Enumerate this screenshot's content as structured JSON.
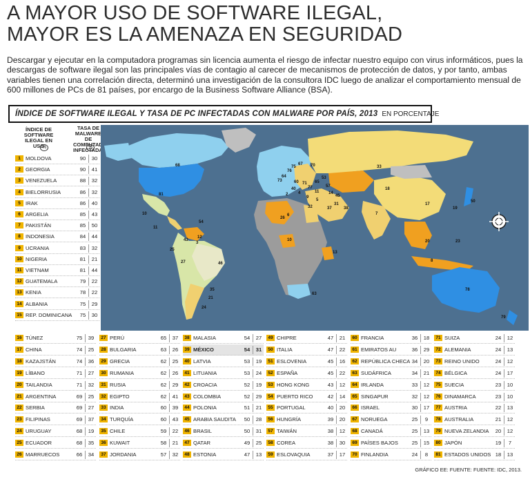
{
  "title": {
    "line1": "A MAYOR USO DE SOFTWARE ILEGAL,",
    "line2": "MAYOR ES LA AMENAZA EN SEGURIDAD"
  },
  "intro": "Descargar y ejecutar en la computadora programas sin licencia aumenta el riesgo de infectar nuestro equipo con virus informáticos, pues la descargas de software ilegal son las principales vías de contagio al carecer de mecanismos de protección de datos,  y por tanto, ambas variables tienen una correlación directa, determinó una investigación de la consultora IDC luego de analizar el comportamiento mensual de 600 millones de PCs de 81 países, por encargo de la Business Software Alliance (BSA).",
  "subhead": {
    "bold": "ÍNDICE DE SOFTWARE ILEGAL Y TASA DE PC INFECTADAS CON MALWARE POR PAÍS, 2013",
    "unit": "EN PORCENTAJE"
  },
  "column_headers": {
    "col1": "ÍNDICE DE SOFTWARE ILEGAL EN USO",
    "col2": "TASA DE MALWARE DE COMPUTADORAS INFECTADAS",
    "pct": "%"
  },
  "footer": "GRÁFICO EE: FUENTE: FUENTE: IDC, 2013.",
  "colors": {
    "ocean": "#4d7090",
    "rank_badge": "#f0b400",
    "highlight_row": "#e4e4e4"
  },
  "chart_data": {
    "type": "table",
    "columns": [
      "Rank",
      "País",
      "Índice de software ilegal en uso (%)",
      "Tasa de malware de computadoras infectadas (%)"
    ],
    "rows": [
      {
        "rank": "1",
        "country": "MOLDOVA",
        "illegal": "90",
        "malware": "30"
      },
      {
        "rank": "2",
        "country": "GEORGIA",
        "illegal": "90",
        "malware": "41"
      },
      {
        "rank": "3",
        "country": "VENEZUELA",
        "illegal": "88",
        "malware": "32"
      },
      {
        "rank": "4",
        "country": "BIELORRUSIA",
        "illegal": "86",
        "malware": "32"
      },
      {
        "rank": "5",
        "country": "IRAK",
        "illegal": "86",
        "malware": "40"
      },
      {
        "rank": "6",
        "country": "ARGELIA",
        "illegal": "85",
        "malware": "43"
      },
      {
        "rank": "7",
        "country": "PAKISTÁN",
        "illegal": "85",
        "malware": "50"
      },
      {
        "rank": "8",
        "country": "INDONESIA",
        "illegal": "84",
        "malware": "44"
      },
      {
        "rank": "9",
        "country": "UCRANIA",
        "illegal": "83",
        "malware": "32"
      },
      {
        "rank": "10",
        "country": "NIGERIA",
        "illegal": "81",
        "malware": "21"
      },
      {
        "rank": "11",
        "country": "VIETNAM",
        "illegal": "81",
        "malware": "44"
      },
      {
        "rank": "12",
        "country": "GUATEMALA",
        "illegal": "79",
        "malware": "22"
      },
      {
        "rank": "13",
        "country": "KENIA",
        "illegal": "78",
        "malware": "22"
      },
      {
        "rank": "14",
        "country": "ALBANIA",
        "illegal": "75",
        "malware": "29"
      },
      {
        "rank": "15",
        "country": "REP. DOMINICANA",
        "illegal": "75",
        "malware": "30"
      },
      {
        "rank": "16",
        "country": "TÚNEZ",
        "illegal": "75",
        "malware": "39"
      },
      {
        "rank": "17",
        "country": "CHINA",
        "illegal": "74",
        "malware": "25"
      },
      {
        "rank": "18",
        "country": "KAZAJSTÁN",
        "illegal": "74",
        "malware": "36"
      },
      {
        "rank": "19",
        "country": "LÍBANO",
        "illegal": "71",
        "malware": "27"
      },
      {
        "rank": "20",
        "country": "TAILANDIA",
        "illegal": "71",
        "malware": "32"
      },
      {
        "rank": "21",
        "country": "ARGENTINA",
        "illegal": "69",
        "malware": "25"
      },
      {
        "rank": "22",
        "country": "SERBIA",
        "illegal": "69",
        "malware": "27"
      },
      {
        "rank": "23",
        "country": "FILIPINAS",
        "illegal": "69",
        "malware": "37"
      },
      {
        "rank": "24",
        "country": "URUGUAY",
        "illegal": "68",
        "malware": "19"
      },
      {
        "rank": "25",
        "country": "ECUADOR",
        "illegal": "68",
        "malware": "35"
      },
      {
        "rank": "26",
        "country": "MARRUECOS",
        "illegal": "66",
        "malware": "34"
      },
      {
        "rank": "27",
        "country": "PERÚ",
        "illegal": "65",
        "malware": "37"
      },
      {
        "rank": "28",
        "country": "BULGARIA",
        "illegal": "63",
        "malware": "26"
      },
      {
        "rank": "29",
        "country": "GRECIA",
        "illegal": "62",
        "malware": "25"
      },
      {
        "rank": "30",
        "country": "RUMANIA",
        "illegal": "62",
        "malware": "26"
      },
      {
        "rank": "31",
        "country": "RUSIA",
        "illegal": "62",
        "malware": "29"
      },
      {
        "rank": "32",
        "country": "EGIPTO",
        "illegal": "62",
        "malware": "41"
      },
      {
        "rank": "33",
        "country": "INDIA",
        "illegal": "60",
        "malware": "39"
      },
      {
        "rank": "34",
        "country": "TURQUÍA",
        "illegal": "60",
        "malware": "43"
      },
      {
        "rank": "35",
        "country": "CHILE",
        "illegal": "59",
        "malware": "22"
      },
      {
        "rank": "36",
        "country": "KUWAIT",
        "illegal": "58",
        "malware": "21"
      },
      {
        "rank": "37",
        "country": "JORDANIA",
        "illegal": "57",
        "malware": "32"
      },
      {
        "rank": "38",
        "country": "MALASIA",
        "illegal": "54",
        "malware": "27"
      },
      {
        "rank": "39",
        "country": "MÉXICO",
        "illegal": "54",
        "malware": "31",
        "highlight": true
      },
      {
        "rank": "40",
        "country": "LATVIA",
        "illegal": "53",
        "malware": "19"
      },
      {
        "rank": "41",
        "country": "LITUANIA",
        "illegal": "53",
        "malware": "24"
      },
      {
        "rank": "42",
        "country": "CROACIA",
        "illegal": "52",
        "malware": "19"
      },
      {
        "rank": "43",
        "country": "COLOMBIA",
        "illegal": "52",
        "malware": "29"
      },
      {
        "rank": "44",
        "country": "POLONIA",
        "illegal": "51",
        "malware": "21"
      },
      {
        "rank": "45",
        "country": "ARABIA SAUDITA",
        "illegal": "50",
        "malware": "28"
      },
      {
        "rank": "46",
        "country": "BRASIL",
        "illegal": "50",
        "malware": "31"
      },
      {
        "rank": "47",
        "country": "QATAR",
        "illegal": "49",
        "malware": "25"
      },
      {
        "rank": "48",
        "country": "ESTONIA",
        "illegal": "47",
        "malware": "13"
      },
      {
        "rank": "49",
        "country": "CHIPRE",
        "illegal": "47",
        "malware": "21"
      },
      {
        "rank": "50",
        "country": "ITALIA",
        "illegal": "47",
        "malware": "22"
      },
      {
        "rank": "51",
        "country": "ESLOVENIA",
        "illegal": "45",
        "malware": "16"
      },
      {
        "rank": "52",
        "country": "ESPAÑA",
        "illegal": "45",
        "malware": "22"
      },
      {
        "rank": "53",
        "country": "HONG KONG",
        "illegal": "43",
        "malware": "12"
      },
      {
        "rank": "54",
        "country": "PUERTO RICO",
        "illegal": "42",
        "malware": "14"
      },
      {
        "rank": "55",
        "country": "PORTUGAL",
        "illegal": "40",
        "malware": "20"
      },
      {
        "rank": "56",
        "country": "HUNGRÍA",
        "illegal": "39",
        "malware": "20"
      },
      {
        "rank": "57",
        "country": "TAIWÁN",
        "illegal": "38",
        "malware": "12"
      },
      {
        "rank": "58",
        "country": "COREA",
        "illegal": "38",
        "malware": "30"
      },
      {
        "rank": "59",
        "country": "ESLOVAQUIA",
        "illegal": "37",
        "malware": "17"
      },
      {
        "rank": "60",
        "country": "FRANCIA",
        "illegal": "36",
        "malware": "18"
      },
      {
        "rank": "61",
        "country": "EMIRATOS AU",
        "illegal": "36",
        "malware": "29"
      },
      {
        "rank": "62",
        "country": "REPÚBLICA CHECA",
        "illegal": "34",
        "malware": "20"
      },
      {
        "rank": "63",
        "country": "SUDÁFRICA",
        "illegal": "34",
        "malware": "21"
      },
      {
        "rank": "64",
        "country": "IRLANDA",
        "illegal": "33",
        "malware": "12"
      },
      {
        "rank": "65",
        "country": "SINGAPUR",
        "illegal": "32",
        "malware": "12"
      },
      {
        "rank": "66",
        "country": "ISRAEL",
        "illegal": "30",
        "malware": "17"
      },
      {
        "rank": "67",
        "country": "NORUEGA",
        "illegal": "25",
        "malware": "9"
      },
      {
        "rank": "68",
        "country": "CANADÁ",
        "illegal": "25",
        "malware": "13"
      },
      {
        "rank": "69",
        "country": "PAÍSES BAJOS",
        "illegal": "25",
        "malware": "15"
      },
      {
        "rank": "70",
        "country": "FINLANDIA",
        "illegal": "24",
        "malware": "8"
      },
      {
        "rank": "71",
        "country": "SUIZA",
        "illegal": "24",
        "malware": "12"
      },
      {
        "rank": "72",
        "country": "ALEMANIA",
        "illegal": "24",
        "malware": "13"
      },
      {
        "rank": "73",
        "country": "REINO UNIDO",
        "illegal": "24",
        "malware": "12"
      },
      {
        "rank": "74",
        "country": "BÉLGICA",
        "illegal": "24",
        "malware": "17"
      },
      {
        "rank": "75",
        "country": "SUECIA",
        "illegal": "23",
        "malware": "10"
      },
      {
        "rank": "76",
        "country": "DINAMARCA",
        "illegal": "23",
        "malware": "10"
      },
      {
        "rank": "77",
        "country": "AUSTRIA",
        "illegal": "22",
        "malware": "13"
      },
      {
        "rank": "78",
        "country": "AUSTRALIA",
        "illegal": "21",
        "malware": "12"
      },
      {
        "rank": "79",
        "country": "NUEVA ZELANDIA",
        "illegal": "20",
        "malware": "12"
      },
      {
        "rank": "80",
        "country": "JAPÓN",
        "illegal": "19",
        "malware": "7"
      },
      {
        "rank": "81",
        "country": "ESTADOS UNIDOS",
        "illegal": "18",
        "malware": "13"
      }
    ]
  },
  "map_labels": [
    "68",
    "81",
    "10",
    "54",
    "11",
    "3",
    "43",
    "12",
    "25",
    "27",
    "46",
    "35",
    "21",
    "24",
    "26",
    "6",
    "32",
    "10",
    "13",
    "63",
    "37",
    "5",
    "45",
    "31",
    "17",
    "33",
    "18",
    "7",
    "20",
    "8",
    "23",
    "38",
    "50",
    "19",
    "78",
    "79",
    "70",
    "67",
    "75",
    "76",
    "64",
    "73",
    "60",
    "71",
    "77",
    "65",
    "53",
    "57",
    "11",
    "9",
    "4",
    "40",
    "2",
    "14"
  ]
}
